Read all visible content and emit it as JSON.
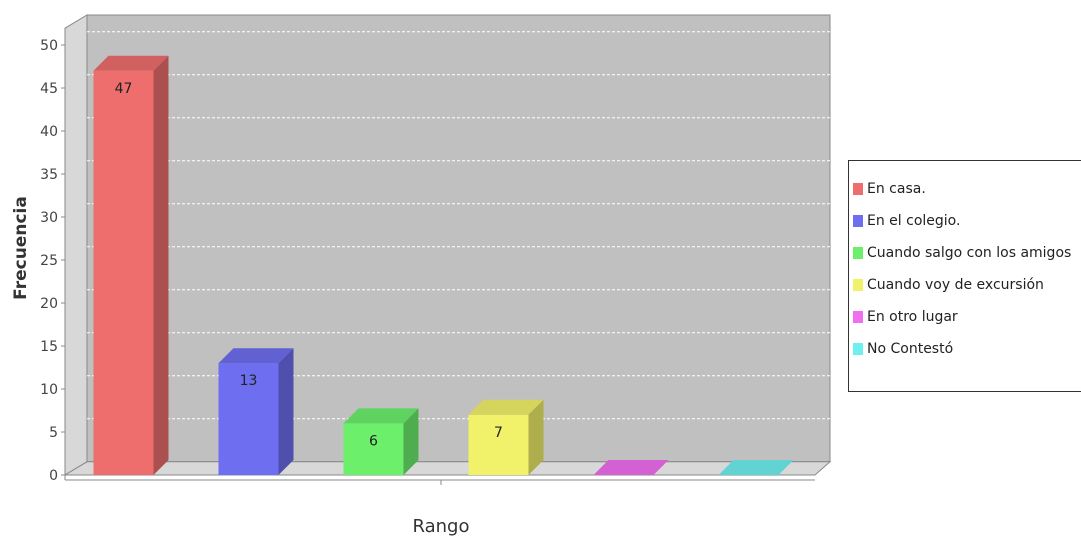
{
  "chart_data": {
    "type": "bar",
    "categories": [
      "En casa.",
      "En el colegio.",
      "Cuando salgo con los amigos",
      "Cuando voy de excursión",
      "En otro lugar",
      "No Contestó"
    ],
    "values": [
      47,
      13,
      6,
      7,
      0,
      0
    ],
    "data_labels": [
      "47",
      "13",
      "6",
      "7",
      "",
      ""
    ],
    "colors": [
      "#ee6e6e",
      "#6e6ef0",
      "#6cf06c",
      "#f2f26a",
      "#f06ef0",
      "#6ef0f0"
    ],
    "title": "",
    "xlabel": "Rango",
    "ylabel": "Frecuencia",
    "ylim": [
      0,
      50
    ],
    "yticks": [
      "0",
      "5",
      "10",
      "15",
      "20",
      "25",
      "30",
      "35",
      "40",
      "45",
      "50"
    ],
    "grid": true,
    "legend_position": "right"
  }
}
